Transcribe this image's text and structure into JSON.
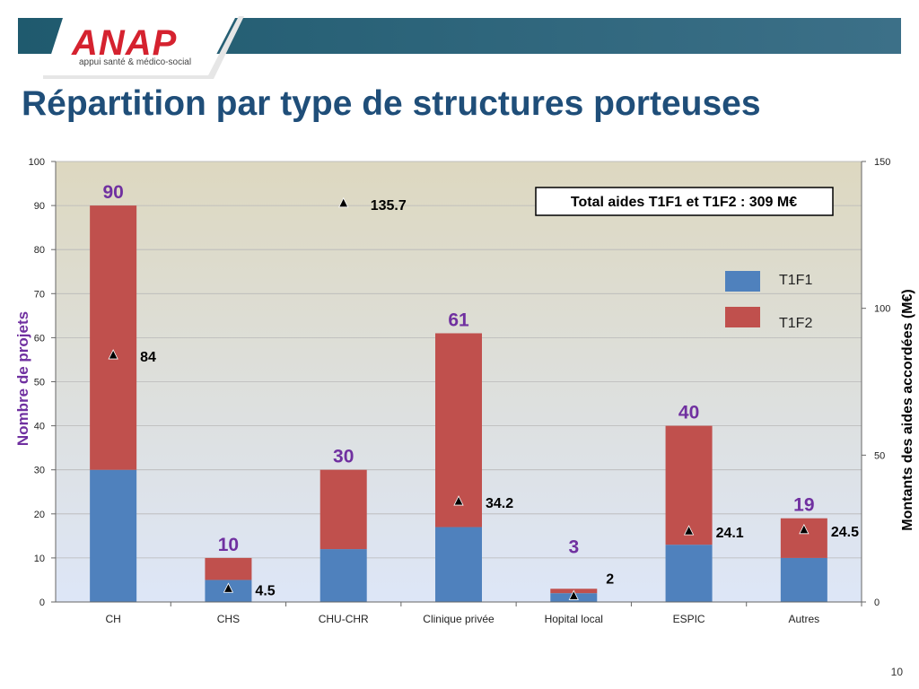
{
  "header": {
    "brand": "ANAP",
    "tagline": "appui santé & médico-social"
  },
  "slide": {
    "title": "Répartition par type de structures porteuses",
    "page_number": "10"
  },
  "colors": {
    "t1f1": "#4f81bd",
    "t1f2": "#c0504d",
    "total_label": "#7030a0",
    "title": "#1f4e79",
    "header_band": "#2e6b80"
  },
  "chart_data": {
    "type": "bar",
    "stacked": true,
    "categories": [
      "CH",
      "CHS",
      "CHU-CHR",
      "Clinique privée",
      "Hopital local",
      "ESPIC",
      "Autres"
    ],
    "series": [
      {
        "name": "T1F1",
        "values": [
          30,
          5,
          12,
          17,
          2,
          13,
          10
        ]
      },
      {
        "name": "T1F2",
        "values": [
          60,
          5,
          18,
          44,
          1,
          27,
          9
        ]
      }
    ],
    "totals": [
      "90",
      "10",
      "30",
      "61",
      "3",
      "40",
      "19"
    ],
    "secondary_series": {
      "marker": "triangle",
      "values": [
        84,
        4.5,
        135.7,
        34.2,
        2,
        24.1,
        24.5
      ],
      "labels": [
        "84",
        "4.5",
        "135.7",
        "34.2",
        "2",
        "24.1",
        "24.5"
      ]
    },
    "ylabel": "Nombre de projets",
    "y2label": "Montants des aides accordées (M€)",
    "ylim": [
      0,
      100
    ],
    "y2lim": [
      0,
      150
    ],
    "yticks": [
      "0",
      "10",
      "20",
      "30",
      "40",
      "50",
      "60",
      "70",
      "80",
      "90",
      "100"
    ],
    "y2ticks": [
      "0",
      "50",
      "100",
      "150"
    ],
    "annotation": "Total aides T1F1 et T1F2 : 309 M€",
    "legend": {
      "position": "right",
      "entries": [
        "T1F1",
        "T1F2"
      ]
    },
    "grid": true
  }
}
